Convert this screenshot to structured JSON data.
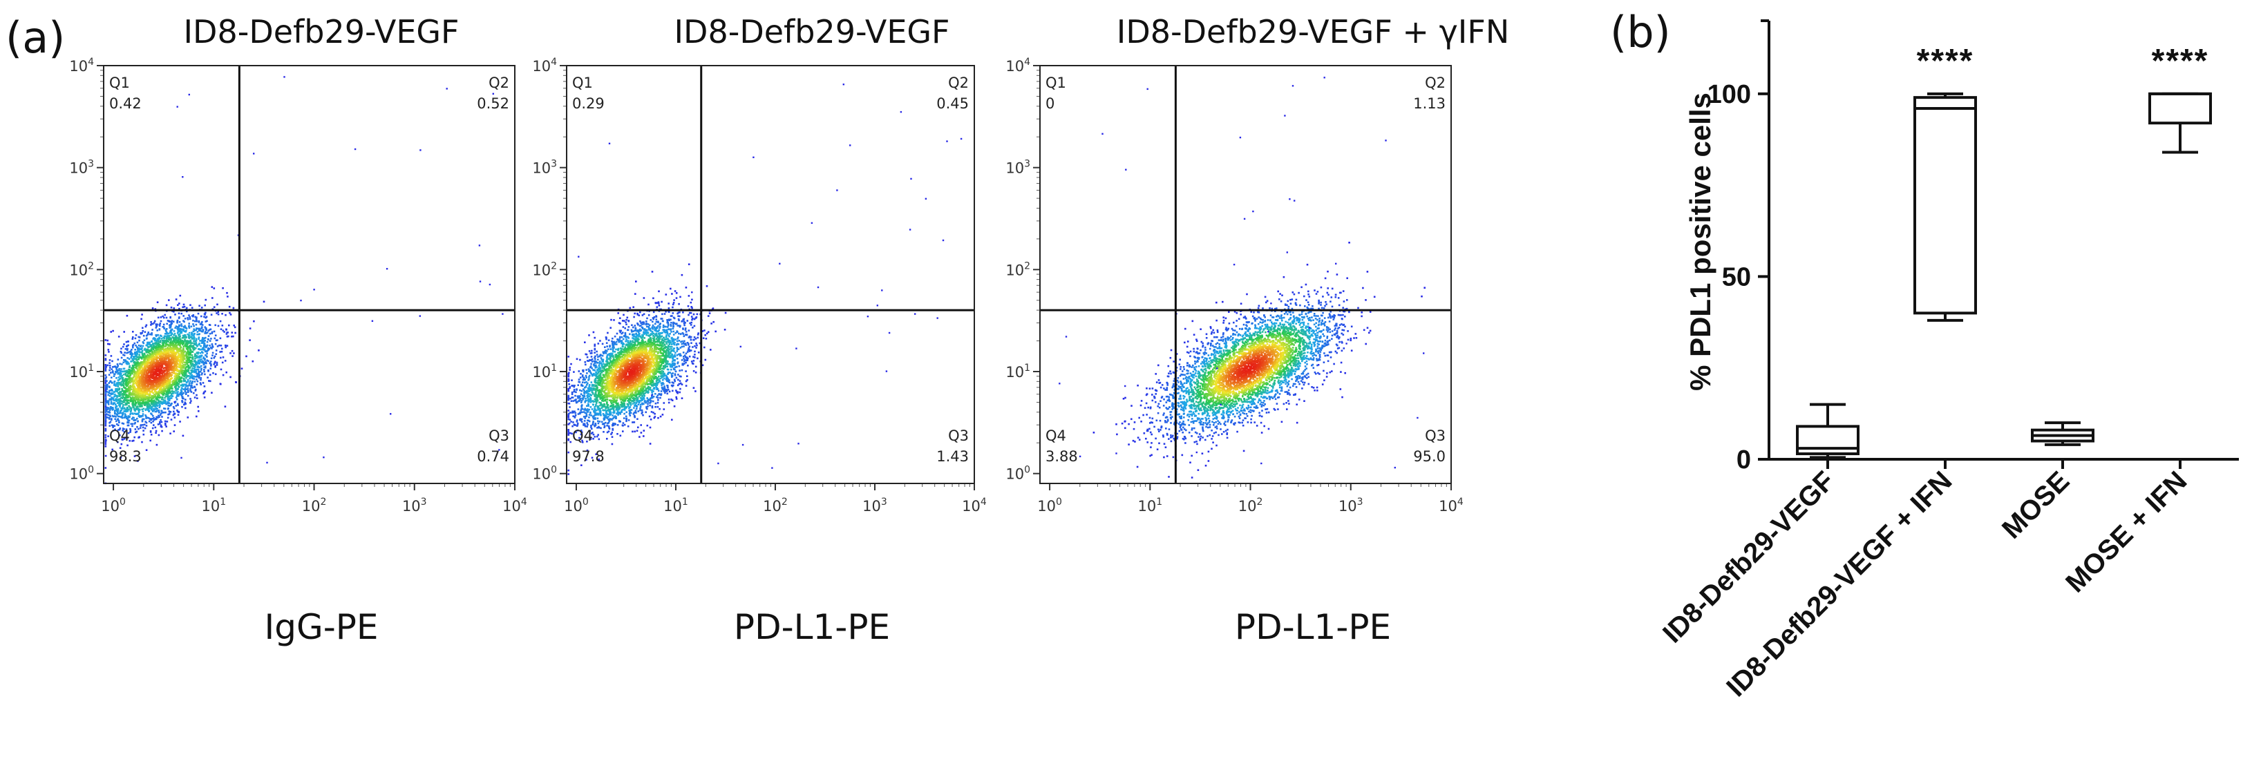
{
  "figure": {
    "panel_a_label": "(a)",
    "panel_b_label": "(b)"
  },
  "chart_data": [
    {
      "type": "scatter",
      "title": "ID8-Defb29-VEGF",
      "xlabel": "IgG-PE",
      "ylabel": "",
      "x_scale": "log",
      "y_scale": "log",
      "xlim": [
        0.8,
        10000
      ],
      "ylim": [
        0.8,
        10000
      ],
      "x_ticks": [
        "10^0",
        "10^1",
        "10^2",
        "10^3",
        "10^4"
      ],
      "y_ticks": [
        "10^0",
        "10^1",
        "10^2",
        "10^3",
        "10^4"
      ],
      "gate": {
        "x": 18,
        "y": 40
      },
      "quadrants": [
        {
          "name": "Q1",
          "value": "0.42"
        },
        {
          "name": "Q2",
          "value": "0.52"
        },
        {
          "name": "Q3",
          "value": "0.74"
        },
        {
          "name": "Q4",
          "value": "98.3"
        }
      ],
      "population": {
        "center": [
          2.7,
          10
        ],
        "spread_log": [
          0.28,
          0.26
        ],
        "correlation": 0.55,
        "n": 4200
      }
    },
    {
      "type": "scatter",
      "title": "ID8-Defb29-VEGF",
      "xlabel": "PD-L1-PE",
      "ylabel": "",
      "x_scale": "log",
      "y_scale": "log",
      "xlim": [
        0.8,
        10000
      ],
      "ylim": [
        0.8,
        10000
      ],
      "x_ticks": [
        "10^0",
        "10^1",
        "10^2",
        "10^3",
        "10^4"
      ],
      "y_ticks": [
        "10^0",
        "10^1",
        "10^2",
        "10^3",
        "10^4"
      ],
      "gate": {
        "x": 18,
        "y": 40
      },
      "quadrants": [
        {
          "name": "Q1",
          "value": "0.29"
        },
        {
          "name": "Q2",
          "value": "0.45"
        },
        {
          "name": "Q3",
          "value": "1.43"
        },
        {
          "name": "Q4",
          "value": "97.8"
        }
      ],
      "population": {
        "center": [
          3.5,
          10
        ],
        "spread_log": [
          0.28,
          0.26
        ],
        "correlation": 0.55,
        "n": 4200
      }
    },
    {
      "type": "scatter",
      "title": "ID8-Defb29-VEGF + γIFN",
      "xlabel": "PD-L1-PE",
      "ylabel": "",
      "x_scale": "log",
      "y_scale": "log",
      "xlim": [
        0.8,
        10000
      ],
      "ylim": [
        0.8,
        10000
      ],
      "x_ticks": [
        "10^0",
        "10^1",
        "10^2",
        "10^3",
        "10^4"
      ],
      "y_ticks": [
        "10^0",
        "10^1",
        "10^2",
        "10^3",
        "10^4"
      ],
      "gate": {
        "x": 18,
        "y": 40
      },
      "quadrants": [
        {
          "name": "Q1",
          "value": "0"
        },
        {
          "name": "Q2",
          "value": "1.13"
        },
        {
          "name": "Q3",
          "value": "95.0"
        },
        {
          "name": "Q4",
          "value": "3.88"
        }
      ],
      "population": {
        "center": [
          95,
          11
        ],
        "spread_log": [
          0.42,
          0.3
        ],
        "correlation": 0.65,
        "n": 4800
      }
    },
    {
      "type": "box",
      "title": "",
      "ylabel": "% PDL1 positive cells",
      "xlabel": "",
      "ylim": [
        0,
        120
      ],
      "y_ticks": [
        0,
        50,
        100
      ],
      "categories": [
        "ID8-Defb29-VEGF",
        "ID8-Defb29-VEGF + IFN",
        "MOSE",
        "MOSE + IFN"
      ],
      "boxes": [
        {
          "min": 0.5,
          "q1": 1.5,
          "median": 3,
          "q3": 9,
          "max": 15
        },
        {
          "min": 38,
          "q1": 40,
          "median": 96,
          "q3": 99,
          "max": 100
        },
        {
          "min": 4,
          "q1": 5,
          "median": 6.5,
          "q3": 8,
          "max": 10
        },
        {
          "min": 84,
          "q1": 92,
          "median": 100,
          "q3": 100,
          "max": 100
        }
      ],
      "annotations": [
        {
          "category": "ID8-Defb29-VEGF + IFN",
          "text": "****"
        },
        {
          "category": "MOSE + IFN",
          "text": "****"
        }
      ]
    }
  ]
}
